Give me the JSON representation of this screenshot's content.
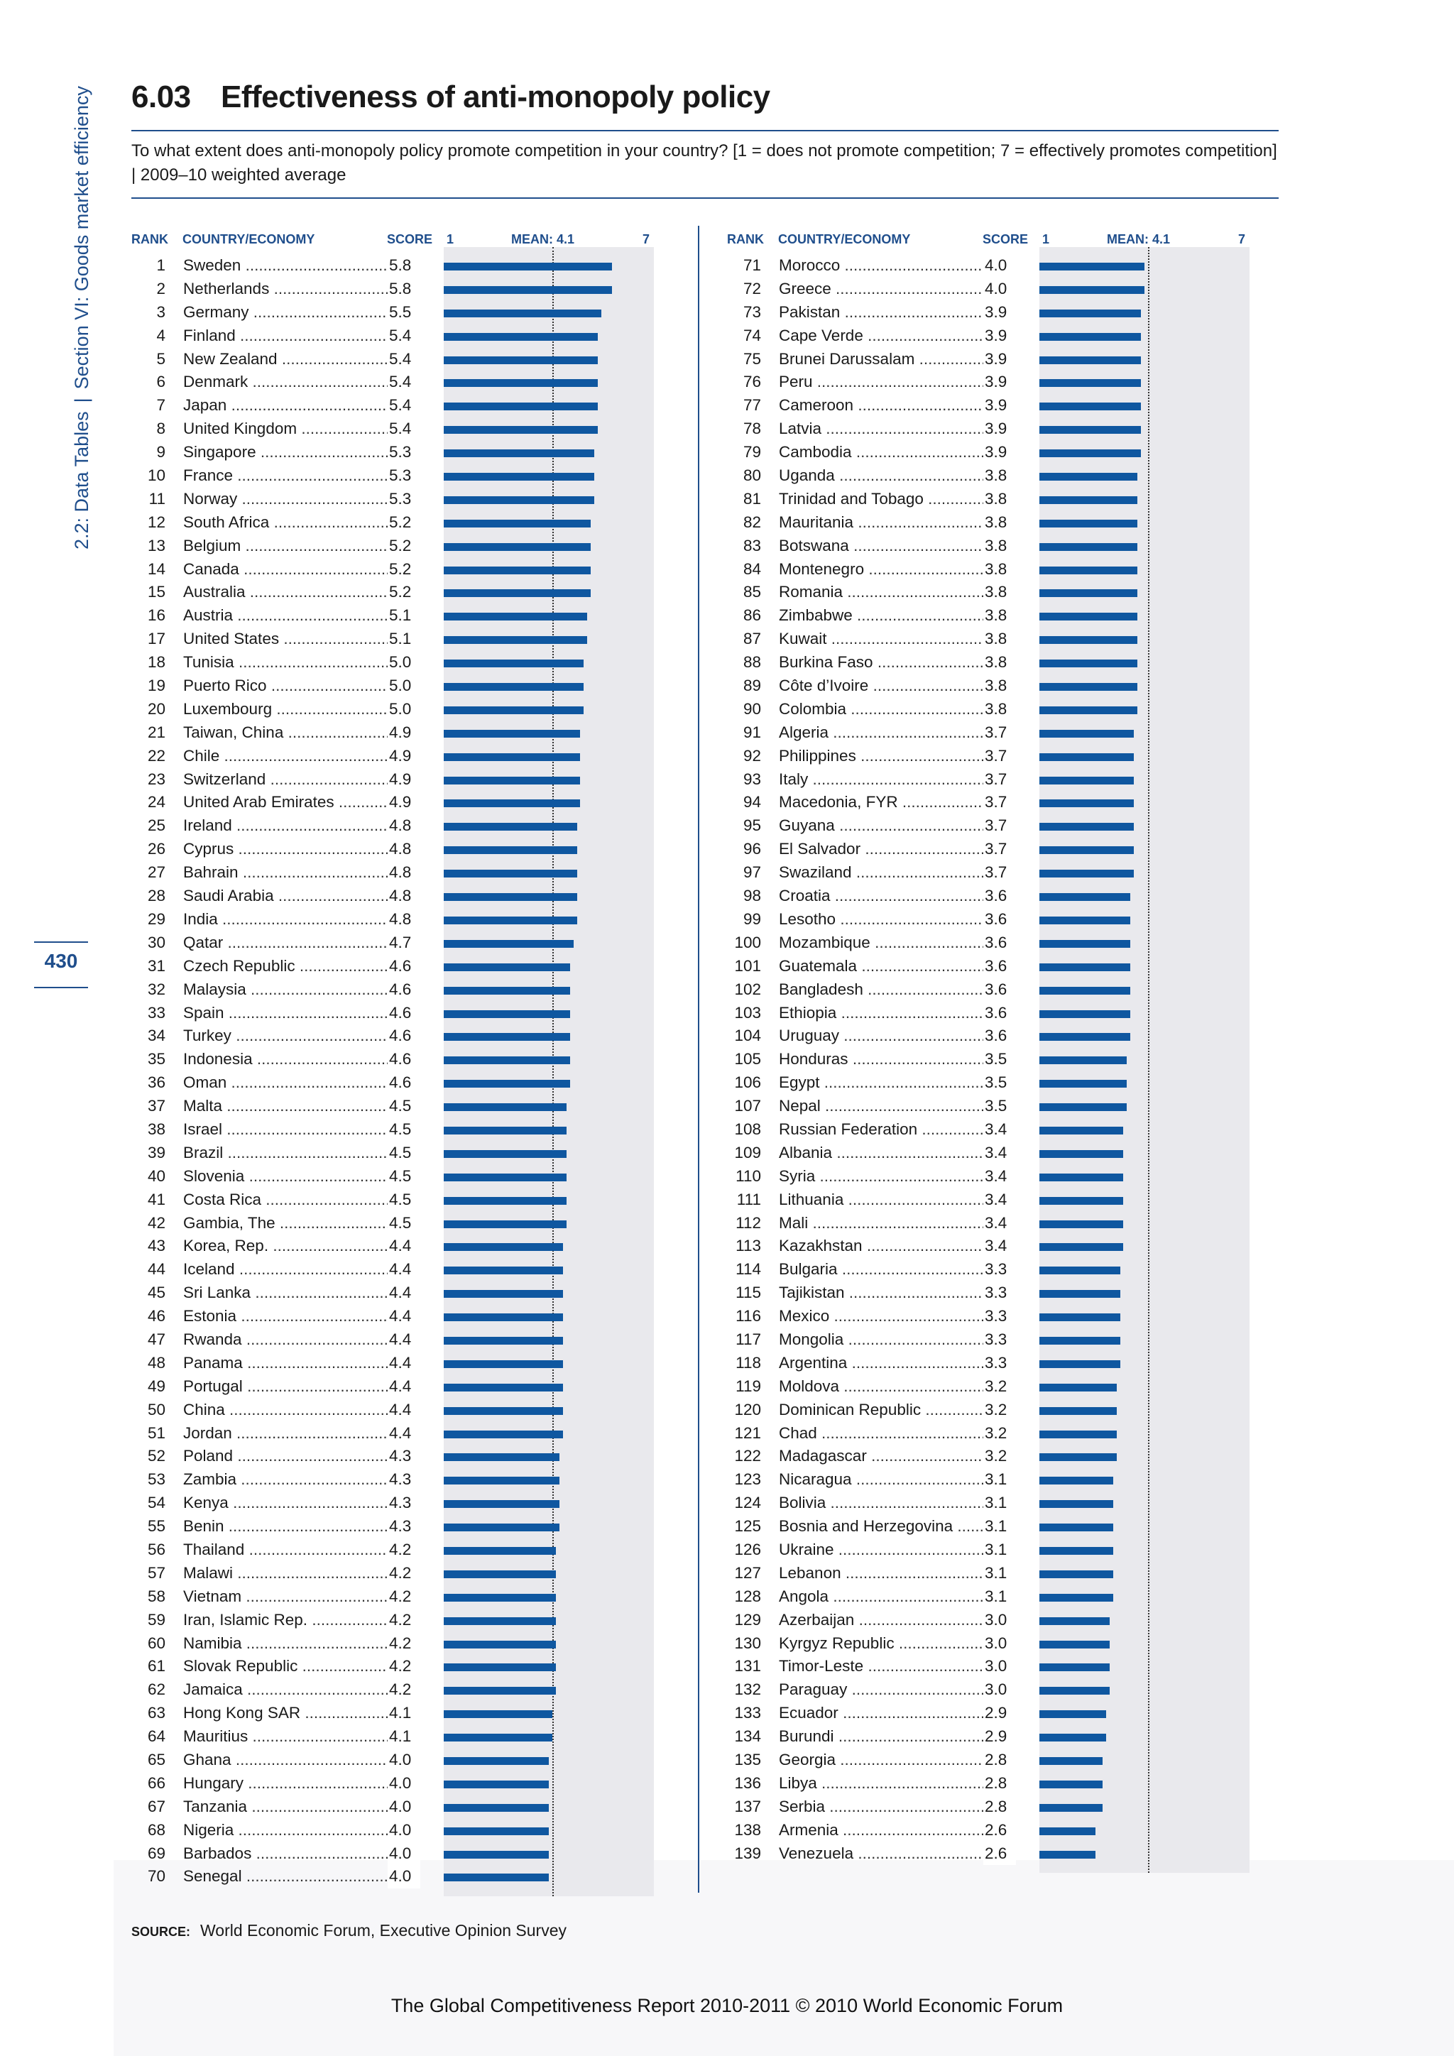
{
  "sidebar": {
    "part1": "2.2: Data Tables",
    "sep": "|",
    "part2": "Section VI: Goods market efficiency"
  },
  "page_number": "430",
  "header": {
    "number": "6.03",
    "title": "Effectiveness of anti-monopoly policy",
    "question": "To what extent does anti-monopoly policy promote competition in your country? [1 = does not promote competition; 7 = effectively promotes competition] | 2009–10 weighted average"
  },
  "columns": {
    "rank": "RANK",
    "country": "COUNTRY/ECONOMY",
    "score": "SCORE",
    "min": "1",
    "mean": "MEAN: 4.1",
    "max": "7"
  },
  "colors": {
    "bar": "#0f57a0",
    "accent": "#1f4e8c",
    "panel": "#e9e9ed"
  },
  "chart_data": {
    "type": "bar",
    "scale": [
      1,
      7
    ],
    "mean": 4.1,
    "rows": [
      {
        "rank": 1,
        "country": "Sweden",
        "score": "5.8"
      },
      {
        "rank": 2,
        "country": "Netherlands",
        "score": "5.8"
      },
      {
        "rank": 3,
        "country": "Germany",
        "score": "5.5"
      },
      {
        "rank": 4,
        "country": "Finland",
        "score": "5.4"
      },
      {
        "rank": 5,
        "country": "New Zealand",
        "score": "5.4"
      },
      {
        "rank": 6,
        "country": "Denmark",
        "score": "5.4"
      },
      {
        "rank": 7,
        "country": "Japan",
        "score": "5.4"
      },
      {
        "rank": 8,
        "country": "United Kingdom",
        "score": "5.4"
      },
      {
        "rank": 9,
        "country": "Singapore",
        "score": "5.3"
      },
      {
        "rank": 10,
        "country": "France",
        "score": "5.3"
      },
      {
        "rank": 11,
        "country": "Norway",
        "score": "5.3"
      },
      {
        "rank": 12,
        "country": "South Africa",
        "score": "5.2"
      },
      {
        "rank": 13,
        "country": "Belgium",
        "score": "5.2"
      },
      {
        "rank": 14,
        "country": "Canada",
        "score": "5.2"
      },
      {
        "rank": 15,
        "country": "Australia",
        "score": "5.2"
      },
      {
        "rank": 16,
        "country": "Austria",
        "score": "5.1"
      },
      {
        "rank": 17,
        "country": "United States",
        "score": "5.1"
      },
      {
        "rank": 18,
        "country": "Tunisia",
        "score": "5.0"
      },
      {
        "rank": 19,
        "country": "Puerto Rico",
        "score": "5.0"
      },
      {
        "rank": 20,
        "country": "Luxembourg",
        "score": "5.0"
      },
      {
        "rank": 21,
        "country": "Taiwan, China",
        "score": "4.9"
      },
      {
        "rank": 22,
        "country": "Chile",
        "score": "4.9"
      },
      {
        "rank": 23,
        "country": "Switzerland",
        "score": "4.9"
      },
      {
        "rank": 24,
        "country": "United Arab Emirates",
        "score": "4.9"
      },
      {
        "rank": 25,
        "country": "Ireland",
        "score": "4.8"
      },
      {
        "rank": 26,
        "country": "Cyprus",
        "score": "4.8"
      },
      {
        "rank": 27,
        "country": "Bahrain",
        "score": "4.8"
      },
      {
        "rank": 28,
        "country": "Saudi Arabia",
        "score": "4.8"
      },
      {
        "rank": 29,
        "country": "India",
        "score": "4.8"
      },
      {
        "rank": 30,
        "country": "Qatar",
        "score": "4.7"
      },
      {
        "rank": 31,
        "country": "Czech Republic",
        "score": "4.6"
      },
      {
        "rank": 32,
        "country": "Malaysia",
        "score": "4.6"
      },
      {
        "rank": 33,
        "country": "Spain",
        "score": "4.6"
      },
      {
        "rank": 34,
        "country": "Turkey",
        "score": "4.6"
      },
      {
        "rank": 35,
        "country": "Indonesia",
        "score": "4.6"
      },
      {
        "rank": 36,
        "country": "Oman",
        "score": "4.6"
      },
      {
        "rank": 37,
        "country": "Malta",
        "score": "4.5"
      },
      {
        "rank": 38,
        "country": "Israel",
        "score": "4.5"
      },
      {
        "rank": 39,
        "country": "Brazil",
        "score": "4.5"
      },
      {
        "rank": 40,
        "country": "Slovenia",
        "score": "4.5"
      },
      {
        "rank": 41,
        "country": "Costa Rica",
        "score": "4.5"
      },
      {
        "rank": 42,
        "country": "Gambia, The",
        "score": "4.5"
      },
      {
        "rank": 43,
        "country": "Korea, Rep.",
        "score": "4.4"
      },
      {
        "rank": 44,
        "country": "Iceland",
        "score": "4.4"
      },
      {
        "rank": 45,
        "country": "Sri Lanka",
        "score": "4.4"
      },
      {
        "rank": 46,
        "country": "Estonia",
        "score": "4.4"
      },
      {
        "rank": 47,
        "country": "Rwanda",
        "score": "4.4"
      },
      {
        "rank": 48,
        "country": "Panama",
        "score": "4.4"
      },
      {
        "rank": 49,
        "country": "Portugal",
        "score": "4.4"
      },
      {
        "rank": 50,
        "country": "China",
        "score": "4.4"
      },
      {
        "rank": 51,
        "country": "Jordan",
        "score": "4.4"
      },
      {
        "rank": 52,
        "country": "Poland",
        "score": "4.3"
      },
      {
        "rank": 53,
        "country": "Zambia",
        "score": "4.3"
      },
      {
        "rank": 54,
        "country": "Kenya",
        "score": "4.3"
      },
      {
        "rank": 55,
        "country": "Benin",
        "score": "4.3"
      },
      {
        "rank": 56,
        "country": "Thailand",
        "score": "4.2"
      },
      {
        "rank": 57,
        "country": "Malawi",
        "score": "4.2"
      },
      {
        "rank": 58,
        "country": "Vietnam",
        "score": "4.2"
      },
      {
        "rank": 59,
        "country": "Iran, Islamic Rep.",
        "score": "4.2"
      },
      {
        "rank": 60,
        "country": "Namibia",
        "score": "4.2"
      },
      {
        "rank": 61,
        "country": "Slovak Republic",
        "score": "4.2"
      },
      {
        "rank": 62,
        "country": "Jamaica",
        "score": "4.2"
      },
      {
        "rank": 63,
        "country": "Hong Kong SAR",
        "score": "4.1"
      },
      {
        "rank": 64,
        "country": "Mauritius",
        "score": "4.1"
      },
      {
        "rank": 65,
        "country": "Ghana",
        "score": "4.0"
      },
      {
        "rank": 66,
        "country": "Hungary",
        "score": "4.0"
      },
      {
        "rank": 67,
        "country": "Tanzania",
        "score": "4.0"
      },
      {
        "rank": 68,
        "country": "Nigeria",
        "score": "4.0"
      },
      {
        "rank": 69,
        "country": "Barbados",
        "score": "4.0"
      },
      {
        "rank": 70,
        "country": "Senegal",
        "score": "4.0"
      },
      {
        "rank": 71,
        "country": "Morocco",
        "score": "4.0"
      },
      {
        "rank": 72,
        "country": "Greece",
        "score": "4.0"
      },
      {
        "rank": 73,
        "country": "Pakistan",
        "score": "3.9"
      },
      {
        "rank": 74,
        "country": "Cape Verde",
        "score": "3.9"
      },
      {
        "rank": 75,
        "country": "Brunei Darussalam",
        "score": "3.9"
      },
      {
        "rank": 76,
        "country": "Peru",
        "score": "3.9"
      },
      {
        "rank": 77,
        "country": "Cameroon",
        "score": "3.9"
      },
      {
        "rank": 78,
        "country": "Latvia",
        "score": "3.9"
      },
      {
        "rank": 79,
        "country": "Cambodia",
        "score": "3.9"
      },
      {
        "rank": 80,
        "country": "Uganda",
        "score": "3.8"
      },
      {
        "rank": 81,
        "country": "Trinidad and Tobago",
        "score": "3.8"
      },
      {
        "rank": 82,
        "country": "Mauritania",
        "score": "3.8"
      },
      {
        "rank": 83,
        "country": "Botswana",
        "score": "3.8"
      },
      {
        "rank": 84,
        "country": "Montenegro",
        "score": "3.8"
      },
      {
        "rank": 85,
        "country": "Romania",
        "score": "3.8"
      },
      {
        "rank": 86,
        "country": "Zimbabwe",
        "score": "3.8"
      },
      {
        "rank": 87,
        "country": "Kuwait",
        "score": "3.8"
      },
      {
        "rank": 88,
        "country": "Burkina Faso",
        "score": "3.8"
      },
      {
        "rank": 89,
        "country": "Côte d’Ivoire",
        "score": "3.8"
      },
      {
        "rank": 90,
        "country": "Colombia",
        "score": "3.8"
      },
      {
        "rank": 91,
        "country": "Algeria",
        "score": "3.7"
      },
      {
        "rank": 92,
        "country": "Philippines",
        "score": "3.7"
      },
      {
        "rank": 93,
        "country": "Italy",
        "score": "3.7"
      },
      {
        "rank": 94,
        "country": "Macedonia, FYR",
        "score": "3.7"
      },
      {
        "rank": 95,
        "country": "Guyana",
        "score": "3.7"
      },
      {
        "rank": 96,
        "country": "El Salvador",
        "score": "3.7"
      },
      {
        "rank": 97,
        "country": "Swaziland",
        "score": "3.7"
      },
      {
        "rank": 98,
        "country": "Croatia",
        "score": "3.6"
      },
      {
        "rank": 99,
        "country": "Lesotho",
        "score": "3.6"
      },
      {
        "rank": 100,
        "country": "Mozambique",
        "score": "3.6"
      },
      {
        "rank": 101,
        "country": "Guatemala",
        "score": "3.6"
      },
      {
        "rank": 102,
        "country": "Bangladesh",
        "score": "3.6"
      },
      {
        "rank": 103,
        "country": "Ethiopia",
        "score": "3.6"
      },
      {
        "rank": 104,
        "country": "Uruguay",
        "score": "3.6"
      },
      {
        "rank": 105,
        "country": "Honduras",
        "score": "3.5"
      },
      {
        "rank": 106,
        "country": "Egypt",
        "score": "3.5"
      },
      {
        "rank": 107,
        "country": "Nepal",
        "score": "3.5"
      },
      {
        "rank": 108,
        "country": "Russian Federation",
        "score": "3.4"
      },
      {
        "rank": 109,
        "country": "Albania",
        "score": "3.4"
      },
      {
        "rank": 110,
        "country": "Syria",
        "score": "3.4"
      },
      {
        "rank": 111,
        "country": "Lithuania",
        "score": "3.4"
      },
      {
        "rank": 112,
        "country": "Mali",
        "score": "3.4"
      },
      {
        "rank": 113,
        "country": "Kazakhstan",
        "score": "3.4"
      },
      {
        "rank": 114,
        "country": "Bulgaria",
        "score": "3.3"
      },
      {
        "rank": 115,
        "country": "Tajikistan",
        "score": "3.3"
      },
      {
        "rank": 116,
        "country": "Mexico",
        "score": "3.3"
      },
      {
        "rank": 117,
        "country": "Mongolia",
        "score": "3.3"
      },
      {
        "rank": 118,
        "country": "Argentina",
        "score": "3.3"
      },
      {
        "rank": 119,
        "country": "Moldova",
        "score": "3.2"
      },
      {
        "rank": 120,
        "country": "Dominican Republic",
        "score": "3.2"
      },
      {
        "rank": 121,
        "country": "Chad",
        "score": "3.2"
      },
      {
        "rank": 122,
        "country": "Madagascar",
        "score": "3.2"
      },
      {
        "rank": 123,
        "country": "Nicaragua",
        "score": "3.1"
      },
      {
        "rank": 124,
        "country": "Bolivia",
        "score": "3.1"
      },
      {
        "rank": 125,
        "country": "Bosnia and Herzegovina",
        "score": "3.1"
      },
      {
        "rank": 126,
        "country": "Ukraine",
        "score": "3.1"
      },
      {
        "rank": 127,
        "country": "Lebanon",
        "score": "3.1"
      },
      {
        "rank": 128,
        "country": "Angola",
        "score": "3.1"
      },
      {
        "rank": 129,
        "country": "Azerbaijan",
        "score": "3.0"
      },
      {
        "rank": 130,
        "country": "Kyrgyz Republic",
        "score": "3.0"
      },
      {
        "rank": 131,
        "country": "Timor-Leste",
        "score": "3.0"
      },
      {
        "rank": 132,
        "country": "Paraguay",
        "score": "3.0"
      },
      {
        "rank": 133,
        "country": "Ecuador",
        "score": "2.9"
      },
      {
        "rank": 134,
        "country": "Burundi",
        "score": "2.9"
      },
      {
        "rank": 135,
        "country": "Georgia",
        "score": "2.8"
      },
      {
        "rank": 136,
        "country": "Libya",
        "score": "2.8"
      },
      {
        "rank": 137,
        "country": "Serbia",
        "score": "2.8"
      },
      {
        "rank": 138,
        "country": "Armenia",
        "score": "2.6"
      },
      {
        "rank": 139,
        "country": "Venezuela",
        "score": "2.6"
      }
    ]
  },
  "source": {
    "label": "SOURCE:",
    "text": "World Economic Forum, Executive Opinion Survey"
  },
  "footer": "The Global Competitiveness Report 2010-2011 © 2010 World Economic Forum"
}
